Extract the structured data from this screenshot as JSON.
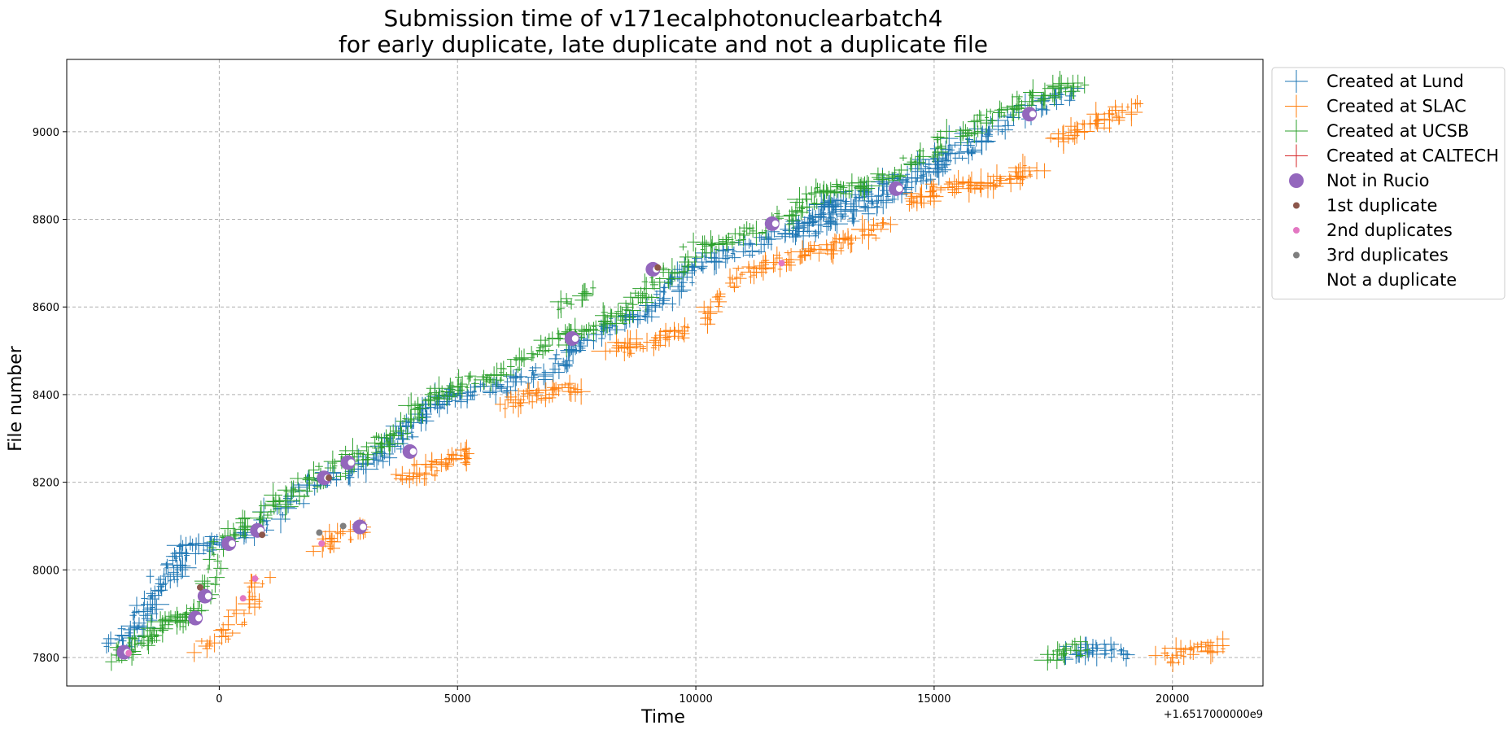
{
  "chart_data": {
    "type": "scatter",
    "title": [
      "Submission time of v171ecalphotonuclearbatch4",
      "for early duplicate, late duplicate and not a duplicate file"
    ],
    "xlabel": "Time",
    "ylabel": "File number",
    "x_offset_label": "+1.6517000000e9",
    "xlim": [
      -3200,
      21900
    ],
    "ylim": [
      7735,
      9165
    ],
    "xticks": [
      0,
      5000,
      10000,
      15000,
      20000
    ],
    "xtick_labels": [
      "0",
      "5000",
      "10000",
      "15000",
      "20000"
    ],
    "yticks": [
      7800,
      8000,
      8200,
      8400,
      8600,
      8800,
      9000
    ],
    "ytick_labels": [
      "7800",
      "8000",
      "8200",
      "8400",
      "8600",
      "8800",
      "9000"
    ],
    "grid": true,
    "legend_position": "outside-upper-right",
    "legend": [
      {
        "label": "Created at Lund",
        "marker": "plus",
        "color": "#1f77b4"
      },
      {
        "label": "Created at SLAC",
        "marker": "plus",
        "color": "#ff7f0e"
      },
      {
        "label": "Created at UCSB",
        "marker": "plus",
        "color": "#2ca02c"
      },
      {
        "label": "Created at CALTECH",
        "marker": "plus",
        "color": "#d62728"
      },
      {
        "label": "Not in Rucio",
        "marker": "circle-large",
        "color": "#9467bd"
      },
      {
        "label": "1st duplicate",
        "marker": "circle-small",
        "color": "#8c564b"
      },
      {
        "label": "2nd duplicates",
        "marker": "circle-small",
        "color": "#e377c2"
      },
      {
        "label": "3rd duplicates",
        "marker": "circle-small",
        "color": "#7f7f7f"
      },
      {
        "label": "Not a duplicate",
        "marker": "none",
        "color": "#ffffff"
      }
    ],
    "series": [
      {
        "name": "Created at Lund",
        "color": "#1f77b4",
        "segments": [
          {
            "x": [
              -2000,
              -1400,
              -800,
              0,
              1000,
              2000,
              3000,
              3600,
              4000,
              4500,
              5000,
              6000,
              7000,
              7600,
              8200,
              9000,
              9600,
              10000,
              11000,
              12000,
              12600,
              13000,
              14000,
              15000,
              16000,
              17000,
              18000
            ],
            "y": [
              7820,
              7910,
              8040,
              8060,
              8110,
              8200,
              8235,
              8280,
              8330,
              8380,
              8400,
              8420,
              8460,
              8520,
              8560,
              8590,
              8650,
              8700,
              8730,
              8780,
              8820,
              8840,
              8880,
              8940,
              9000,
              9050,
              9095
            ]
          },
          {
            "x": [
              -2200,
              -1800,
              -1400,
              -1000,
              -600
            ],
            "y": [
              7820,
              7880,
              7950,
              8010,
              8050
            ]
          },
          {
            "x": [
              12000,
              13000,
              14000,
              15000,
              16000
            ],
            "y": [
              8760,
              8800,
              8850,
              8920,
              8980
            ]
          },
          {
            "x": [
              17800,
              18400,
              19000
            ],
            "y": [
              7810,
              7820,
              7810
            ]
          }
        ]
      },
      {
        "name": "Created at SLAC",
        "color": "#ff7f0e",
        "segments": [
          {
            "x": [
              -400,
              200,
              600,
              900
            ],
            "y": [
              7820,
              7860,
              7920,
              7980
            ]
          },
          {
            "x": [
              2000,
              2600,
              3000
            ],
            "y": [
              8050,
              8080,
              8100
            ]
          },
          {
            "x": [
              3800,
              4400,
              5000,
              5400
            ],
            "y": [
              8210,
              8230,
              8250,
              8270
            ]
          },
          {
            "x": [
              6000,
              6800,
              7600
            ],
            "y": [
              8380,
              8400,
              8420
            ]
          },
          {
            "x": [
              8200,
              9000,
              9800
            ],
            "y": [
              8500,
              8520,
              8550
            ]
          },
          {
            "x": [
              10200,
              11000,
              12000,
              13000,
              14000
            ],
            "y": [
              8570,
              8680,
              8710,
              8740,
              8790
            ]
          },
          {
            "x": [
              14400,
              15200,
              16200,
              17200
            ],
            "y": [
              8840,
              8870,
              8880,
              8920
            ]
          },
          {
            "x": [
              17600,
              18400,
              19200
            ],
            "y": [
              8980,
              9020,
              9055
            ]
          },
          {
            "x": [
              19800,
              20400,
              21000
            ],
            "y": [
              7800,
              7810,
              7830
            ]
          }
        ]
      },
      {
        "name": "Created at UCSB",
        "color": "#2ca02c",
        "segments": [
          {
            "x": [
              -2200,
              -1600,
              -1000,
              -400,
              0,
              800,
              1600,
              2400,
              3200,
              3800,
              4400,
              5000,
              6000,
              7000,
              7600,
              8400,
              9000,
              10000,
              11000,
              12000,
              12600,
              13400,
              14400,
              15400,
              16400,
              17200,
              18000
            ],
            "y": [
              7800,
              7840,
              7880,
              7900,
              8060,
              8120,
              8180,
              8230,
              8270,
              8320,
              8390,
              8420,
              8450,
              8520,
              8550,
              8580,
              8640,
              8730,
              8760,
              8810,
              8860,
              8870,
              8920,
              8990,
              9040,
              9080,
              9110
            ]
          },
          {
            "x": [
              7200,
              7500,
              7700
            ],
            "y": [
              8600,
              8620,
              8640
            ]
          },
          {
            "x": [
              17400,
              17800,
              18200
            ],
            "y": [
              7790,
              7810,
              7830
            ]
          }
        ]
      },
      {
        "name": "Created at CALTECH",
        "color": "#d62728",
        "segments": []
      },
      {
        "name": "Not in Rucio",
        "color": "#9467bd",
        "points": {
          "x": [
            -2000,
            -500,
            -300,
            200,
            800,
            2200,
            2700,
            2950,
            4000,
            7400,
            9100,
            11600,
            14200,
            17000
          ],
          "y": [
            7812,
            7890,
            7940,
            8060,
            8090,
            8210,
            8245,
            8098,
            8270,
            8528,
            8686,
            8790,
            8870,
            9040
          ]
        }
      },
      {
        "name": "1st duplicate",
        "color": "#8c564b",
        "points": {
          "x": [
            -400,
            900,
            2300,
            9200
          ],
          "y": [
            7960,
            8080,
            8210,
            8690
          ]
        }
      },
      {
        "name": "2nd duplicates",
        "color": "#e377c2",
        "points": {
          "x": [
            -1900,
            500,
            750,
            2150,
            11800
          ],
          "y": [
            7810,
            7935,
            7980,
            8060,
            8700
          ]
        }
      },
      {
        "name": "3rd duplicates",
        "color": "#7f7f7f",
        "points": {
          "x": [
            2100,
            2600
          ],
          "y": [
            8085,
            8100
          ]
        }
      }
    ]
  }
}
